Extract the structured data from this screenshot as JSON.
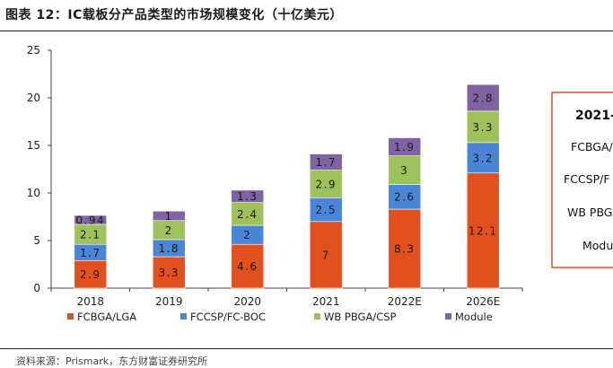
{
  "title": "图表 12：IC载板分产品类型的市场规模变化（十亿美元）",
  "source": "资料来源：Prismark，东方财富证券研究所",
  "chart_data": {
    "type": "bar",
    "stacked": true,
    "categories": [
      "2018",
      "2019",
      "2020",
      "2021",
      "2022E",
      "2026E"
    ],
    "series": [
      {
        "name": "FCBGA/LGA",
        "color": "#E2501E",
        "values": [
          2.9,
          3.3,
          4.6,
          7,
          8.3,
          12.1
        ]
      },
      {
        "name": "FCCSP/FC-BOC",
        "color": "#4A86D8",
        "values": [
          1.7,
          1.8,
          2,
          2.5,
          2.6,
          3.2
        ]
      },
      {
        "name": "WB PBGA/CSP",
        "color": "#9DC15B",
        "values": [
          2.1,
          2,
          2.4,
          2.9,
          3,
          3.3
        ]
      },
      {
        "name": "Module",
        "color": "#8064A2",
        "values": [
          0.94,
          1,
          1.3,
          1.7,
          1.9,
          2.8
        ]
      }
    ],
    "data_labels": [
      [
        "2.9",
        "3.3",
        "4.6",
        "7",
        "8.3",
        "12.1"
      ],
      [
        "1.7",
        "1.8",
        "2",
        "2.5",
        "2.6",
        "3.2"
      ],
      [
        "2.1",
        "2",
        "2.4",
        "2.9",
        "3",
        "3.3"
      ],
      [
        "0.94",
        "1",
        "1.3",
        "1.7",
        "1.9",
        "2.8"
      ]
    ],
    "ylim": [
      0,
      25
    ],
    "yticks": [
      "0",
      "5",
      "10",
      "15",
      "20",
      "25"
    ],
    "grid": false,
    "legend_position": "bottom"
  },
  "side_box": {
    "border_color": "#E2501E",
    "lines": [
      "2021-",
      "FCBGA/",
      "FCCSP/F",
      "WB PBG",
      "Modu"
    ]
  }
}
